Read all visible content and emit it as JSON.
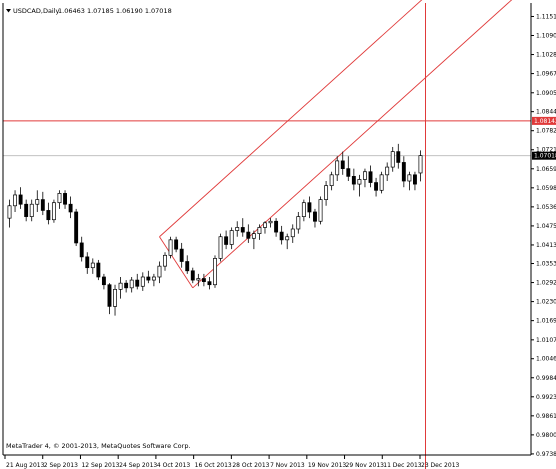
{
  "header": {
    "title": "USDCAD,Daily",
    "ohlc": "1.06463 1.07185 1.06190 1.07018"
  },
  "copyright": "MetaTrader 4, © 2001-2013, MetaQuotes Software Corp.",
  "price_tags": {
    "crosshair": "1.08142",
    "current": "1.07018"
  },
  "colors": {
    "candle_outline": "#000000",
    "bull_body": "#ffffff",
    "bear_body": "#000000",
    "channel": "#e03a3a",
    "crosshair": "#e03a3a",
    "current_line": "#b8b8b8",
    "current_tag": "#000000",
    "crosshair_tag": "#e03a3a"
  },
  "chart_data": {
    "type": "candlestick",
    "symbol": "USDCAD",
    "timeframe": "Daily",
    "ylim": [
      0.9735,
      1.1195
    ],
    "y_ticks": [
      "1.11515",
      "1.10900",
      "1.10285",
      "1.09670",
      "1.09050",
      "1.08440",
      "1.07825",
      "1.07210",
      "1.06595",
      "1.05980",
      "1.05365",
      "1.04750",
      "1.04135",
      "1.03535",
      "1.02920",
      "1.02305",
      "1.01690",
      "1.01070",
      "1.00460",
      "0.99845",
      "0.99230",
      "0.98615",
      "0.98000",
      "0.97385"
    ],
    "x_ticks": [
      "21 Aug 2013",
      "2 Sep 2013",
      "12 Sep 2013",
      "24 Sep 2013",
      "4 Oct 2013",
      "16 Oct 2013",
      "28 Oct 2013",
      "7 Nov 2013",
      "19 Nov 2013",
      "29 Nov 2013",
      "11 Dec 2013",
      "23 Dec 2013"
    ],
    "ohlc": [
      [
        1.05,
        1.056,
        1.047,
        1.054
      ],
      [
        1.054,
        1.059,
        1.052,
        1.0575
      ],
      [
        1.0575,
        1.06,
        1.053,
        1.0545
      ],
      [
        1.0545,
        1.056,
        1.049,
        1.0505
      ],
      [
        1.0505,
        1.056,
        1.049,
        1.0545
      ],
      [
        1.0545,
        1.059,
        1.052,
        1.056
      ],
      [
        1.056,
        1.0585,
        1.051,
        1.0525
      ],
      [
        1.0525,
        1.055,
        1.048,
        1.0495
      ],
      [
        1.0495,
        1.056,
        1.0485,
        1.055
      ],
      [
        1.055,
        1.059,
        1.053,
        1.058
      ],
      [
        1.058,
        1.059,
        1.053,
        1.0545
      ],
      [
        1.0545,
        1.057,
        1.05,
        1.052
      ],
      [
        1.052,
        1.053,
        1.041,
        1.042
      ],
      [
        1.042,
        1.044,
        1.036,
        1.0375
      ],
      [
        1.0375,
        1.039,
        1.032,
        1.034
      ],
      [
        1.034,
        1.037,
        1.032,
        1.0355
      ],
      [
        1.0355,
        1.0365,
        1.03,
        1.031
      ],
      [
        1.031,
        1.032,
        1.027,
        1.0285
      ],
      [
        1.0285,
        1.029,
        1.019,
        1.0215
      ],
      [
        1.0215,
        1.0285,
        1.0185,
        1.027
      ],
      [
        1.027,
        1.031,
        1.024,
        1.029
      ],
      [
        1.029,
        1.03,
        1.026,
        1.0275
      ],
      [
        1.0275,
        1.031,
        1.026,
        1.03
      ],
      [
        1.03,
        1.032,
        1.027,
        1.028
      ],
      [
        1.028,
        1.0325,
        1.0265,
        1.031
      ],
      [
        1.031,
        1.033,
        1.029,
        1.03
      ],
      [
        1.03,
        1.032,
        1.028,
        1.031
      ],
      [
        1.031,
        1.036,
        1.029,
        1.0345
      ],
      [
        1.0345,
        1.039,
        1.033,
        1.038
      ],
      [
        1.038,
        1.044,
        1.037,
        1.043
      ],
      [
        1.043,
        1.044,
        1.039,
        1.04
      ],
      [
        1.04,
        1.042,
        1.034,
        1.036
      ],
      [
        1.036,
        1.038,
        1.032,
        1.033
      ],
      [
        1.033,
        1.034,
        1.029,
        1.03
      ],
      [
        1.03,
        1.032,
        1.028,
        1.0305
      ],
      [
        1.0305,
        1.032,
        1.028,
        1.0295
      ],
      [
        1.0295,
        1.031,
        1.027,
        1.0285
      ],
      [
        1.0285,
        1.038,
        1.0275,
        1.037
      ],
      [
        1.037,
        1.045,
        1.036,
        1.044
      ],
      [
        1.044,
        1.046,
        1.04,
        1.0415
      ],
      [
        1.0415,
        1.047,
        1.04,
        1.046
      ],
      [
        1.046,
        1.049,
        1.044,
        1.047
      ],
      [
        1.047,
        1.05,
        1.044,
        1.0455
      ],
      [
        1.0455,
        1.048,
        1.042,
        1.0435
      ],
      [
        1.0435,
        1.046,
        1.04,
        1.045
      ],
      [
        1.045,
        1.048,
        1.043,
        1.047
      ],
      [
        1.047,
        1.049,
        1.045,
        1.0485
      ],
      [
        1.0485,
        1.05,
        1.047,
        1.049
      ],
      [
        1.049,
        1.05,
        1.044,
        1.0455
      ],
      [
        1.0455,
        1.0475,
        1.0415,
        1.043
      ],
      [
        1.043,
        1.045,
        1.04,
        1.044
      ],
      [
        1.044,
        1.048,
        1.042,
        1.0465
      ],
      [
        1.0465,
        1.052,
        1.045,
        1.0505
      ],
      [
        1.0505,
        1.056,
        1.049,
        1.055
      ],
      [
        1.055,
        1.057,
        1.05,
        1.052
      ],
      [
        1.052,
        1.053,
        1.047,
        1.049
      ],
      [
        1.049,
        1.057,
        1.048,
        1.056
      ],
      [
        1.056,
        1.062,
        1.054,
        1.0605
      ],
      [
        1.0605,
        1.065,
        1.059,
        1.064
      ],
      [
        1.064,
        1.07,
        1.062,
        1.0685
      ],
      [
        1.0685,
        1.0715,
        1.064,
        1.066
      ],
      [
        1.066,
        1.07,
        1.062,
        1.0635
      ],
      [
        1.0635,
        1.066,
        1.059,
        1.061
      ],
      [
        1.061,
        1.064,
        1.057,
        1.0625
      ],
      [
        1.0625,
        1.066,
        1.06,
        1.065
      ],
      [
        1.065,
        1.067,
        1.06,
        1.0615
      ],
      [
        1.0615,
        1.063,
        1.057,
        1.059
      ],
      [
        1.059,
        1.065,
        1.058,
        1.064
      ],
      [
        1.064,
        1.068,
        1.062,
        1.0665
      ],
      [
        1.0665,
        1.073,
        1.065,
        1.0715
      ],
      [
        1.0715,
        1.074,
        1.066,
        1.068
      ],
      [
        1.068,
        1.07,
        1.06,
        1.062
      ],
      [
        1.062,
        1.065,
        1.059,
        1.064
      ],
      [
        1.064,
        1.065,
        1.059,
        1.061
      ],
      [
        1.0646,
        1.0719,
        1.0619,
        1.0702
      ]
    ]
  }
}
